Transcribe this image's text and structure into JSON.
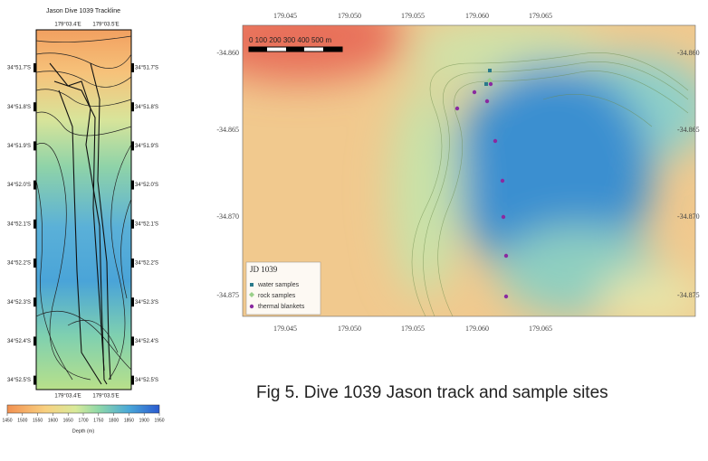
{
  "left_panel": {
    "title": "Jason Dive 1039 Trackline",
    "top_ticks": [
      "179°03.4'E",
      "179°03.5'E"
    ],
    "bottom_ticks": [
      "179°03.4'E",
      "179°03.5'E"
    ],
    "left_ticks": [
      "34°51.7'S",
      "34°51.8'S",
      "34°51.9'S",
      "34°52.0'S",
      "34°52.1'S",
      "34°52.2'S",
      "34°52.3'S",
      "34°52.4'S",
      "34°52.5'S"
    ],
    "right_ticks": [
      "34°51.7'S",
      "34°51.8'S",
      "34°51.9'S",
      "34°52.0'S",
      "34°52.1'S",
      "34°52.2'S",
      "34°52.3'S",
      "34°52.4'S",
      "34°52.5'S"
    ],
    "colorbar": {
      "ticks": [
        "1450",
        "1500",
        "1550",
        "1600",
        "1650",
        "1700",
        "1750",
        "1800",
        "1850",
        "1900",
        "1950"
      ],
      "label": "Depth (m)"
    }
  },
  "right_panel": {
    "top_ticks": [
      "179.045",
      "179.050",
      "179.055",
      "179.060",
      "179.065"
    ],
    "bottom_ticks": [
      "179.045",
      "179.050",
      "179.055",
      "179.060",
      "179.065"
    ],
    "left_ticks": [
      "-34.860",
      "-34.865",
      "-34.870",
      "-34.875"
    ],
    "right_ticks": [
      "-34.860",
      "-34.865",
      "-34.870",
      "-34.875"
    ],
    "scale_bar": "0   100  200  300  400  500 m",
    "legend": {
      "title": "JD 1039",
      "items": [
        "water samples",
        "rock samples",
        "thermal blankets"
      ]
    }
  },
  "caption": "Fig 5. Dive 1039 Jason track and sample sites"
}
